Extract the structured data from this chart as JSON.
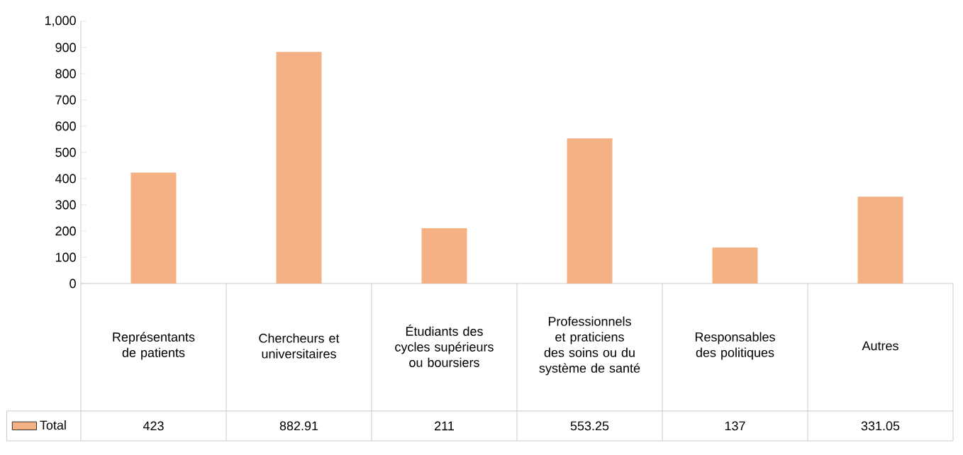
{
  "chart_data": {
    "type": "bar",
    "categories": [
      "Représentants de patients",
      "Chercheurs et universitaires",
      "Étudiants des cycles supérieurs ou boursiers",
      "Professionnels et praticiens des soins ou du système de santé",
      "Responsables des politiques",
      "Autres"
    ],
    "series": [
      {
        "name": "Total",
        "color": "#f4b183",
        "values": [
          423,
          882.91,
          211,
          553.25,
          137,
          331.05
        ]
      }
    ],
    "ylim": [
      0,
      1000
    ],
    "yticks": [
      0,
      100,
      200,
      300,
      400,
      500,
      600,
      700,
      800,
      900,
      {
        "value": 1000,
        "label": "1,000"
      }
    ],
    "data_labels": true,
    "legend": "bottom left",
    "grid": false
  }
}
